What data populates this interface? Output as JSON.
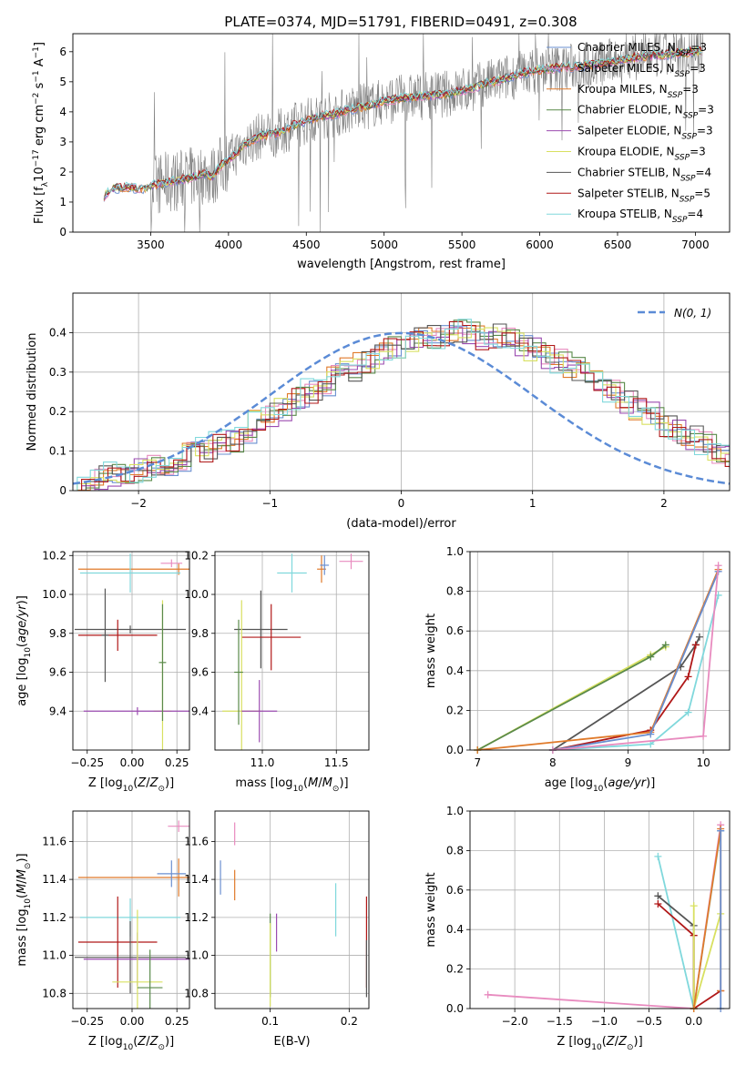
{
  "figure_title": "PLATE=0374, MJD=51791, FIBERID=0491, z=0.308",
  "colors": {
    "chabrier_miles": "#6a8fd0",
    "salpeter_miles": "#e88bbf",
    "kroupa_miles": "#e07a2a",
    "chabrier_elodie": "#5a8a4a",
    "salpeter_elodie": "#9b4bb0",
    "kroupa_elodie": "#d8e060",
    "chabrier_stelib": "#555555",
    "salpeter_stelib": "#b01818",
    "kroupa_stelib": "#80d8dc",
    "data": "#808080",
    "normal": "#5b8bd6"
  },
  "chart_data": [
    {
      "id": "spectrum",
      "type": "line",
      "xlabel": "wavelength [Angstrom, rest frame]",
      "ylabel": "Flux [f_λ10^-17 erg cm^-2 s^-1 A^-1]",
      "xlim": [
        3000,
        7220
      ],
      "ylim": [
        0,
        6.6
      ],
      "xticks": [
        3500,
        4000,
        4500,
        5000,
        5500,
        6000,
        6500,
        7000
      ],
      "yticks": [
        0,
        1,
        2,
        3,
        4,
        5,
        6
      ],
      "grid": false,
      "legend_position": "top-right",
      "continuum": [
        [
          3200,
          1.2
        ],
        [
          3250,
          1.45
        ],
        [
          3350,
          1.5
        ],
        [
          3450,
          1.45
        ],
        [
          3550,
          1.6
        ],
        [
          3650,
          1.7
        ],
        [
          3750,
          1.8
        ],
        [
          3850,
          1.95
        ],
        [
          3900,
          1.85
        ],
        [
          3950,
          2.2
        ],
        [
          4000,
          2.4
        ],
        [
          4100,
          2.9
        ],
        [
          4200,
          3.2
        ],
        [
          4300,
          3.25
        ],
        [
          4400,
          3.5
        ],
        [
          4500,
          3.7
        ],
        [
          4600,
          3.85
        ],
        [
          4700,
          3.95
        ],
        [
          4800,
          4.1
        ],
        [
          4900,
          4.2
        ],
        [
          5000,
          4.35
        ],
        [
          5100,
          4.45
        ],
        [
          5200,
          4.5
        ],
        [
          5300,
          4.55
        ],
        [
          5400,
          4.6
        ],
        [
          5500,
          4.7
        ],
        [
          5600,
          4.85
        ],
        [
          5700,
          5.0
        ],
        [
          5800,
          5.15
        ],
        [
          5900,
          5.3
        ],
        [
          6000,
          5.4
        ],
        [
          6100,
          5.45
        ],
        [
          6200,
          5.5
        ],
        [
          6300,
          5.55
        ],
        [
          6400,
          5.6
        ],
        [
          6500,
          5.7
        ],
        [
          6600,
          5.8
        ],
        [
          6700,
          5.85
        ],
        [
          6800,
          5.9
        ],
        [
          6900,
          5.95
        ],
        [
          7000,
          6.0
        ],
        [
          7050,
          6.05
        ]
      ],
      "series": [
        {
          "name": "Chabrier MILES, N_SSP=3",
          "color_key": "chabrier_miles"
        },
        {
          "name": "Salpeter MILES, N_SSP=3",
          "color_key": "salpeter_miles"
        },
        {
          "name": "Kroupa MILES, N_SSP=3",
          "color_key": "kroupa_miles"
        },
        {
          "name": "Chabrier ELODIE, N_SSP=3",
          "color_key": "chabrier_elodie"
        },
        {
          "name": "Salpeter ELODIE, N_SSP=3",
          "color_key": "salpeter_elodie"
        },
        {
          "name": "Kroupa ELODIE, N_SSP=3",
          "color_key": "kroupa_elodie"
        },
        {
          "name": "Chabrier STELIB, N_SSP=4",
          "color_key": "chabrier_stelib"
        },
        {
          "name": "Salpeter STELIB, N_SSP=5",
          "color_key": "salpeter_stelib"
        },
        {
          "name": "Kroupa STELIB, N_SSP=4",
          "color_key": "kroupa_stelib"
        }
      ]
    },
    {
      "id": "residuals",
      "type": "line",
      "xlabel": "(data-model)/error",
      "ylabel": "Normed distribution",
      "xlim": [
        -2.5,
        2.5
      ],
      "ylim": [
        0,
        0.5
      ],
      "xticks": [
        -2,
        -1,
        0,
        1,
        2
      ],
      "yticks": [
        0.0,
        0.1,
        0.2,
        0.3,
        0.4
      ],
      "grid": true,
      "legend_position": "top-right",
      "normal_label": "N(0, 1)",
      "bin_width": 0.1,
      "hist_values": [
        0.02,
        0.02,
        0.03,
        0.04,
        0.05,
        0.05,
        0.06,
        0.07,
        0.08,
        0.09,
        0.1,
        0.12,
        0.13,
        0.15,
        0.17,
        0.19,
        0.21,
        0.23,
        0.25,
        0.27,
        0.29,
        0.31,
        0.33,
        0.34,
        0.36,
        0.37,
        0.38,
        0.39,
        0.39,
        0.4,
        0.4,
        0.39,
        0.39,
        0.38,
        0.37,
        0.36,
        0.34,
        0.33,
        0.31,
        0.29,
        0.27,
        0.25,
        0.23,
        0.21,
        0.19,
        0.17,
        0.15,
        0.13,
        0.12,
        0.1,
        0.09
      ]
    },
    {
      "id": "age_vs_Z",
      "type": "scatter",
      "xlabel": "Z [log10(Z/Z⊙)]",
      "ylabel": "age [log10(age/yr)]",
      "xlim": [
        -0.33,
        0.32
      ],
      "ylim": [
        9.2,
        10.22
      ],
      "xticks": [
        -0.25,
        0.0,
        0.25
      ],
      "xticklabels": [
        "−0.25",
        "0.00",
        "0.25"
      ],
      "yticks": [
        9.4,
        9.6,
        9.8,
        10.0,
        10.2
      ],
      "yticklabels": [
        "9.4",
        "9.6",
        "9.8",
        "10.0",
        "10.2"
      ],
      "grid": true,
      "points": [
        {
          "key": "kroupa_miles",
          "x": 0.26,
          "y": 10.13,
          "xerr": 0.56,
          "yerr": 0.03
        },
        {
          "key": "kroupa_stelib",
          "x": -0.01,
          "y": 10.11,
          "xerr": 0.28,
          "yerr": 0.1
        },
        {
          "key": "salpeter_miles",
          "x": 0.22,
          "y": 10.16,
          "xerr": 0.06,
          "yerr": 0.02
        },
        {
          "key": "chabrier_stelib",
          "x": -0.01,
          "y": 9.82,
          "xerr": 0.31,
          "yerr": 0.02
        },
        {
          "key": "salpeter_stelib",
          "x": -0.08,
          "y": 9.79,
          "xerr": 0.22,
          "yerr": 0.08
        },
        {
          "key": "kroupa_elodie",
          "x": 0.17,
          "y": 9.4,
          "xerr": 0.05,
          "yerr": 0.57
        },
        {
          "key": "salpeter_elodie",
          "x": 0.03,
          "y": 9.4,
          "xerr": 0.3,
          "yerr": 0.02
        },
        {
          "key": "chabrier_elodie",
          "x": 0.17,
          "y": 9.65,
          "xerr": 0.02,
          "yerr": 0.3
        },
        {
          "key": "chabrier_stelib",
          "x": -0.15,
          "y": 9.79,
          "xerr": 0.02,
          "yerr": 0.24
        }
      ]
    },
    {
      "id": "age_vs_mass",
      "type": "scatter",
      "xlabel": "mass [log10(M/M⊙)]",
      "ylabel": "",
      "xlim": [
        10.68,
        11.72
      ],
      "ylim": [
        9.2,
        10.22
      ],
      "xticks": [
        11.0,
        11.5
      ],
      "xticklabels": [
        "11.0",
        "11.5"
      ],
      "yticks": [
        9.4,
        9.6,
        9.8,
        10.0,
        10.2
      ],
      "yticklabels": [
        "9.4",
        "9.6",
        "9.8",
        "10.0",
        "10.2"
      ],
      "grid": true,
      "points": [
        {
          "key": "kroupa_stelib",
          "x": 11.2,
          "y": 10.11,
          "xerr": 0.1,
          "yerr": 0.1
        },
        {
          "key": "salpeter_miles",
          "x": 11.6,
          "y": 10.17,
          "xerr": 0.08,
          "yerr": 0.04
        },
        {
          "key": "kroupa_miles",
          "x": 11.4,
          "y": 10.13,
          "xerr": 0.03,
          "yerr": 0.07
        },
        {
          "key": "chabrier_miles",
          "x": 11.42,
          "y": 10.15,
          "xerr": 0.03,
          "yerr": 0.05
        },
        {
          "key": "chabrier_stelib",
          "x": 10.99,
          "y": 9.82,
          "xerr": 0.18,
          "yerr": 0.2
        },
        {
          "key": "salpeter_stelib",
          "x": 11.06,
          "y": 9.78,
          "xerr": 0.2,
          "yerr": 0.17
        },
        {
          "key": "kroupa_elodie",
          "x": 10.86,
          "y": 9.4,
          "xerr": 0.13,
          "yerr": 0.57
        },
        {
          "key": "salpeter_elodie",
          "x": 10.98,
          "y": 9.4,
          "xerr": 0.12,
          "yerr": 0.16
        },
        {
          "key": "chabrier_elodie",
          "x": 10.84,
          "y": 9.6,
          "xerr": 0.03,
          "yerr": 0.27
        }
      ]
    },
    {
      "id": "mass_weight_vs_age",
      "type": "line",
      "xlabel": "age [log10(age/yr)]",
      "ylabel": "mass weight",
      "xlim": [
        6.9,
        10.35
      ],
      "ylim": [
        0,
        1.0
      ],
      "xticks": [
        7,
        8,
        9,
        10
      ],
      "xticklabels": [
        "7",
        "8",
        "9",
        "10"
      ],
      "yticks": [
        0.0,
        0.2,
        0.4,
        0.6,
        0.8,
        1.0
      ],
      "yticklabels": [
        "0.0",
        "0.2",
        "0.4",
        "0.6",
        "0.8",
        "1.0"
      ],
      "grid": true,
      "series": [
        {
          "key": "kroupa_elodie",
          "x": [
            7.0,
            9.3,
            9.5
          ],
          "y": [
            0.0,
            0.48,
            0.52
          ]
        },
        {
          "key": "chabrier_elodie",
          "x": [
            7.0,
            9.3,
            9.5
          ],
          "y": [
            0.0,
            0.47,
            0.53
          ]
        },
        {
          "key": "chabrier_stelib",
          "x": [
            8.0,
            9.7,
            9.9,
            9.95
          ],
          "y": [
            0.0,
            0.42,
            0.53,
            0.57
          ]
        },
        {
          "key": "salpeter_stelib",
          "x": [
            8.0,
            9.3,
            9.8,
            9.9
          ],
          "y": [
            0.0,
            0.1,
            0.37,
            0.53
          ]
        },
        {
          "key": "kroupa_miles",
          "x": [
            7.0,
            9.3,
            10.2
          ],
          "y": [
            0.0,
            0.09,
            0.91
          ]
        },
        {
          "key": "chabrier_miles",
          "x": [
            8.0,
            9.3,
            10.2
          ],
          "y": [
            0.0,
            0.08,
            0.9
          ]
        },
        {
          "key": "kroupa_stelib",
          "x": [
            8.0,
            9.3,
            9.8,
            10.2
          ],
          "y": [
            0.0,
            0.03,
            0.19,
            0.78
          ]
        },
        {
          "key": "salpeter_miles",
          "x": [
            8.0,
            10.0,
            10.2
          ],
          "y": [
            0.0,
            0.07,
            0.93
          ]
        }
      ]
    },
    {
      "id": "mass_vs_Z",
      "type": "scatter",
      "xlabel": "Z [log10(Z/Z⊙)]",
      "ylabel": "mass [log10(M/M⊙)]",
      "xlim": [
        -0.33,
        0.32
      ],
      "ylim": [
        10.72,
        11.76
      ],
      "xticks": [
        -0.25,
        0.0,
        0.25
      ],
      "xticklabels": [
        "−0.25",
        "0.00",
        "0.25"
      ],
      "yticks": [
        10.8,
        11.0,
        11.2,
        11.4,
        11.6
      ],
      "yticklabels": [
        "10.8",
        "11.0",
        "11.2",
        "11.4",
        "11.6"
      ],
      "grid": true,
      "points": [
        {
          "key": "salpeter_miles",
          "x": 0.26,
          "y": 11.68,
          "xerr": 0.06,
          "yerr": 0.03
        },
        {
          "key": "kroupa_miles",
          "x": 0.26,
          "y": 11.41,
          "xerr": 0.56,
          "yerr": 0.1
        },
        {
          "key": "chabrier_miles",
          "x": 0.22,
          "y": 11.43,
          "xerr": 0.08,
          "yerr": 0.07
        },
        {
          "key": "kroupa_stelib",
          "x": -0.01,
          "y": 11.2,
          "xerr": 0.28,
          "yerr": 0.1
        },
        {
          "key": "salpeter_stelib",
          "x": -0.08,
          "y": 11.07,
          "xerr": 0.22,
          "yerr": 0.24
        },
        {
          "key": "chabrier_stelib",
          "x": -0.01,
          "y": 10.99,
          "xerr": 0.31,
          "yerr": 0.19
        },
        {
          "key": "salpeter_elodie",
          "x": 0.03,
          "y": 10.98,
          "xerr": 0.3,
          "yerr": 0.14
        },
        {
          "key": "kroupa_elodie",
          "x": 0.03,
          "y": 10.86,
          "xerr": 0.14,
          "yerr": 0.38
        },
        {
          "key": "chabrier_elodie",
          "x": 0.1,
          "y": 10.83,
          "xerr": 0.07,
          "yerr": 0.2
        }
      ]
    },
    {
      "id": "mass_vs_ebv",
      "type": "scatter",
      "xlabel": "E(B-V)",
      "ylabel": "",
      "xlim": [
        0.03,
        0.225
      ],
      "ylim": [
        10.72,
        11.76
      ],
      "xticks": [
        0.1,
        0.2
      ],
      "xticklabels": [
        "0.1",
        "0.2"
      ],
      "yticks": [
        10.8,
        11.0,
        11.2,
        11.4,
        11.6
      ],
      "yticklabels": [
        "10.8",
        "11.0",
        "11.2",
        "11.4",
        "11.6"
      ],
      "grid": true,
      "points": [
        {
          "key": "chabrier_miles",
          "x": 0.037,
          "y": 11.41,
          "xerr": 0.0,
          "yerr": 0.09
        },
        {
          "key": "salpeter_miles",
          "x": 0.055,
          "y": 11.64,
          "xerr": 0.0,
          "yerr": 0.06
        },
        {
          "key": "kroupa_miles",
          "x": 0.055,
          "y": 11.37,
          "xerr": 0.0,
          "yerr": 0.08
        },
        {
          "key": "chabrier_elodie",
          "x": 0.1,
          "y": 11.0,
          "xerr": 0.0,
          "yerr": 0.22
        },
        {
          "key": "kroupa_elodie",
          "x": 0.1,
          "y": 10.95,
          "xerr": 0.0,
          "yerr": 0.22
        },
        {
          "key": "salpeter_elodie",
          "x": 0.108,
          "y": 11.12,
          "xerr": 0.0,
          "yerr": 0.1
        },
        {
          "key": "kroupa_stelib",
          "x": 0.183,
          "y": 11.24,
          "xerr": 0.0,
          "yerr": 0.14
        },
        {
          "key": "salpeter_stelib",
          "x": 0.222,
          "y": 11.07,
          "xerr": 0.0,
          "yerr": 0.24
        },
        {
          "key": "chabrier_stelib",
          "x": 0.222,
          "y": 10.93,
          "xerr": 0.0,
          "yerr": 0.15
        }
      ]
    },
    {
      "id": "mass_weight_vs_Z",
      "type": "line",
      "xlabel": "Z [log10(Z/Z⊙)]",
      "ylabel": "mass weight",
      "xlim": [
        -2.5,
        0.4
      ],
      "ylim": [
        0,
        1.0
      ],
      "xticks": [
        -2.0,
        -1.5,
        -1.0,
        -0.5,
        0.0
      ],
      "xticklabels": [
        "−2.0",
        "−1.5",
        "−1.0",
        "−0.5",
        "0.0"
      ],
      "yticks": [
        0.0,
        0.2,
        0.4,
        0.6,
        0.8,
        1.0
      ],
      "yticklabels": [
        "0.0",
        "0.2",
        "0.4",
        "0.6",
        "0.8",
        "1.0"
      ],
      "grid": true,
      "series": [
        {
          "key": "salpeter_miles",
          "x": [
            -2.3,
            0.0,
            0.3
          ],
          "y": [
            0.07,
            0.0,
            0.93
          ]
        },
        {
          "key": "kroupa_stelib",
          "x": [
            -0.4,
            0.0,
            0.3
          ],
          "y": [
            0.77,
            0.0,
            0.9
          ]
        },
        {
          "key": "chabrier_stelib",
          "x": [
            -0.4,
            0.0,
            0.0
          ],
          "y": [
            0.57,
            0.42,
            0.0
          ]
        },
        {
          "key": "salpeter_stelib",
          "x": [
            -0.4,
            0.0,
            0.0,
            0.3
          ],
          "y": [
            0.53,
            0.37,
            0.0,
            0.09
          ]
        },
        {
          "key": "kroupa_elodie",
          "x": [
            0.0,
            0.0,
            0.3
          ],
          "y": [
            0.52,
            0.0,
            0.48
          ]
        },
        {
          "key": "kroupa_miles",
          "x": [
            0.0,
            0.3,
            0.3
          ],
          "y": [
            0.0,
            0.91,
            0.09
          ]
        },
        {
          "key": "chabrier_miles",
          "x": [
            0.3,
            0.3
          ],
          "y": [
            0.0,
            0.9
          ]
        }
      ]
    }
  ]
}
